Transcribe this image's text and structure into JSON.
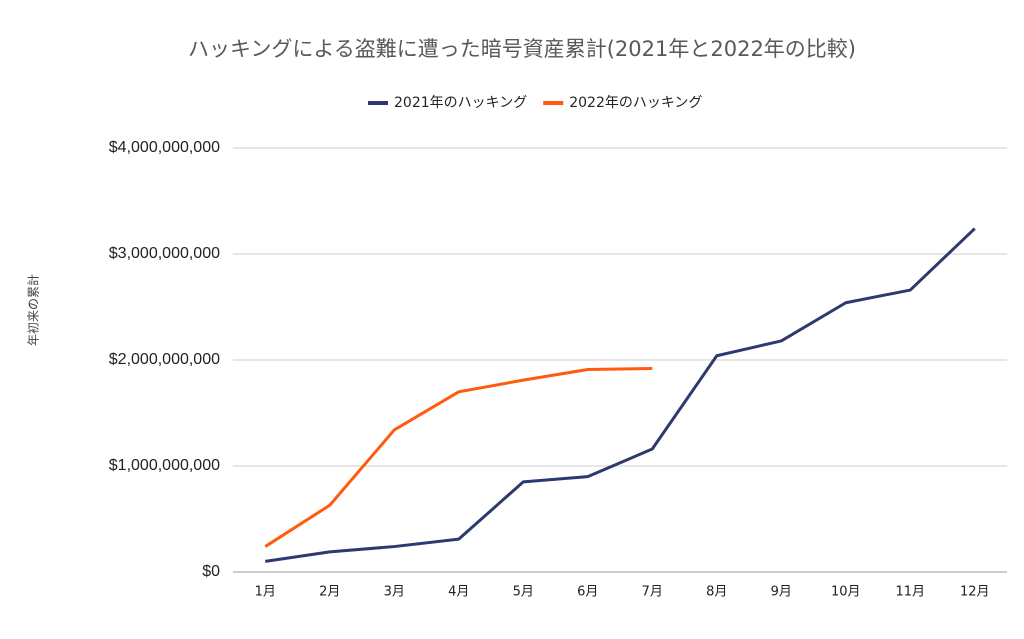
{
  "chart_data": {
    "type": "line",
    "title": "ハッキングによる盗難に遭った暗号資産累計(2021年と2022年の比較)",
    "y_label": "年初来の累計",
    "categories": [
      "1月",
      "2月",
      "3月",
      "4月",
      "5月",
      "6月",
      "7月",
      "8月",
      "9月",
      "10月",
      "11月",
      "12月"
    ],
    "series": [
      {
        "name": "2021年のハッキング",
        "color": "#2e3a6e",
        "values": [
          100000000,
          190000000,
          240000000,
          310000000,
          850000000,
          900000000,
          1160000000,
          2040000000,
          2180000000,
          2540000000,
          2660000000,
          3240000000
        ]
      },
      {
        "name": "2022年のハッキング",
        "color": "#ff5b0f",
        "values": [
          240000000,
          630000000,
          1340000000,
          1700000000,
          1810000000,
          1910000000,
          1920000000,
          null,
          null,
          null,
          null,
          null
        ]
      }
    ],
    "ylim": [
      0,
      4000000000
    ],
    "yticks": [
      {
        "value": 0,
        "label": "$0"
      },
      {
        "value": 1000000000,
        "label": "$1,000,000,000"
      },
      {
        "value": 2000000000,
        "label": "$2,000,000,000"
      },
      {
        "value": 3000000000,
        "label": "$3,000,000,000"
      },
      {
        "value": 4000000000,
        "label": "$4,000,000,000"
      }
    ],
    "grid": true
  }
}
